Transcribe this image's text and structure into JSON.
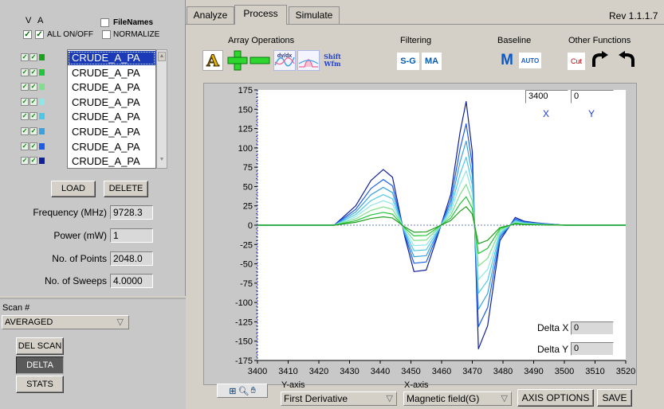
{
  "left": {
    "header_v": "V",
    "header_a": "A",
    "filenames_label": "FileNames",
    "all_onoff_label": "ALL ON/OFF",
    "normalize_label": "NORMALIZE",
    "files": [
      "CRUDE_A_PA",
      "CRUDE_A_PA",
      "CRUDE_A_PA",
      "CRUDE_A_PA",
      "CRUDE_A_PA",
      "CRUDE_A_PA",
      "CRUDE_A_PA",
      "CRUDE_A_PA"
    ],
    "swatch_colors": [
      "#1ea01e",
      "#22c43a",
      "#7ee08a",
      "#8fe6e6",
      "#4fc8e8",
      "#3aa0e0",
      "#1c5ce8",
      "#10209a"
    ],
    "load_label": "LOAD",
    "delete_label": "DELETE",
    "frequency_label": "Frequency (MHz)",
    "frequency_value": "9728.3",
    "power_label": "Power (mW)",
    "power_value": "1",
    "points_label": "No. of Points",
    "points_value": "2048.0",
    "sweeps_label": "No. of Sweeps",
    "sweeps_value": "4.0000",
    "scan_label": "Scan #",
    "scan_value": "AVERAGED",
    "del_scan_label": "DEL SCAN",
    "delta_label": "DELTA",
    "stats_label": "STATS"
  },
  "tabs": [
    "Analyze",
    "Process",
    "Simulate"
  ],
  "active_tab": "Process",
  "version": "Rev 1.1.1.7",
  "groups": {
    "array_ops": "Array Operations",
    "filtering": "Filtering",
    "baseline": "Baseline",
    "other": "Other Functions"
  },
  "tools": {
    "shift_line1": "Shift",
    "shift_line2": "Wfm",
    "dydx": "dy/dx",
    "sg": "S-G",
    "ma": "MA",
    "m": "M",
    "auto": "AUTO",
    "cut": "Cut"
  },
  "cursor": {
    "x_value": "3400",
    "y_value": "0",
    "x_label": "X",
    "y_label": "Y",
    "delta_x_label": "Delta X",
    "delta_x_value": "0",
    "delta_y_label": "Delta Y",
    "delta_y_value": "0"
  },
  "bottom": {
    "y_axis_label": "Y-axis",
    "y_axis_value": "First Derivative",
    "x_axis_label": "X-axis",
    "x_axis_value": "Magnetic field(G)",
    "axis_options_label": "AXIS OPTIONS",
    "save_label": "SAVE"
  },
  "chart_data": {
    "type": "line",
    "xlim": [
      3400,
      3520
    ],
    "ylim": [
      -175,
      175
    ],
    "x_ticks": [
      3400,
      3410,
      3420,
      3430,
      3440,
      3450,
      3460,
      3470,
      3480,
      3490,
      3500,
      3510,
      3520
    ],
    "y_ticks": [
      175,
      150,
      125,
      100,
      75,
      50,
      25,
      0,
      -25,
      -50,
      -75,
      -100,
      -125,
      -150,
      -175
    ],
    "grid": false,
    "series": [
      {
        "color": "#10209a",
        "scale": 1.0,
        "x": [
          3400,
          3425,
          3432,
          3437,
          3441,
          3444,
          3448,
          3451,
          3455,
          3459,
          3463,
          3466,
          3468,
          3470,
          3472,
          3475,
          3479,
          3484,
          3487,
          3491,
          3494,
          3500,
          3520
        ],
        "y": [
          0,
          0,
          25,
          58,
          72,
          62,
          -15,
          -60,
          -58,
          -10,
          40,
          120,
          160,
          95,
          -160,
          -130,
          -20,
          10,
          5,
          3,
          2,
          0,
          0
        ]
      },
      {
        "color": "#1c5ce8",
        "scale": 0.82,
        "x": [
          3400,
          3425,
          3432,
          3437,
          3441,
          3444,
          3448,
          3451,
          3455,
          3459,
          3463,
          3466,
          3468,
          3470,
          3472,
          3475,
          3479,
          3484,
          3487,
          3491,
          3494,
          3500,
          3520
        ],
        "y": [
          0,
          0,
          25,
          58,
          72,
          62,
          -15,
          -60,
          -58,
          -10,
          40,
          120,
          160,
          95,
          -160,
          -130,
          -20,
          10,
          5,
          3,
          2,
          0,
          0
        ]
      },
      {
        "color": "#3aa0e0",
        "scale": 0.68,
        "x": [
          3400,
          3425,
          3432,
          3437,
          3441,
          3444,
          3448,
          3451,
          3455,
          3459,
          3463,
          3466,
          3468,
          3470,
          3472,
          3475,
          3479,
          3484,
          3487,
          3491,
          3494,
          3500,
          3520
        ],
        "y": [
          0,
          0,
          25,
          58,
          72,
          62,
          -15,
          -60,
          -58,
          -10,
          40,
          120,
          160,
          95,
          -160,
          -130,
          -20,
          10,
          5,
          3,
          2,
          0,
          0
        ]
      },
      {
        "color": "#4fc8e8",
        "scale": 0.55,
        "x": [
          3400,
          3425,
          3432,
          3437,
          3441,
          3444,
          3448,
          3451,
          3455,
          3459,
          3463,
          3466,
          3468,
          3470,
          3472,
          3475,
          3479,
          3484,
          3487,
          3491,
          3494,
          3500,
          3520
        ],
        "y": [
          0,
          0,
          25,
          58,
          72,
          62,
          -15,
          -60,
          -58,
          -10,
          40,
          120,
          160,
          95,
          -160,
          -130,
          -20,
          10,
          5,
          3,
          2,
          0,
          0
        ]
      },
      {
        "color": "#8fe6e6",
        "scale": 0.44,
        "x": [
          3400,
          3425,
          3432,
          3437,
          3441,
          3444,
          3448,
          3451,
          3455,
          3459,
          3463,
          3466,
          3468,
          3470,
          3472,
          3475,
          3479,
          3484,
          3487,
          3491,
          3494,
          3500,
          3520
        ],
        "y": [
          0,
          0,
          25,
          58,
          72,
          62,
          -15,
          -60,
          -58,
          -10,
          40,
          120,
          160,
          95,
          -160,
          -130,
          -20,
          10,
          5,
          3,
          2,
          0,
          0
        ]
      },
      {
        "color": "#7ee08a",
        "scale": 0.33,
        "x": [
          3400,
          3425,
          3432,
          3437,
          3441,
          3444,
          3448,
          3451,
          3455,
          3459,
          3463,
          3466,
          3468,
          3470,
          3472,
          3475,
          3479,
          3484,
          3487,
          3491,
          3494,
          3500,
          3520
        ],
        "y": [
          0,
          0,
          25,
          58,
          72,
          62,
          -15,
          -60,
          -58,
          -10,
          40,
          120,
          160,
          95,
          -160,
          -130,
          -20,
          10,
          5,
          3,
          2,
          0,
          0
        ]
      },
      {
        "color": "#22c43a",
        "scale": 0.23,
        "x": [
          3400,
          3425,
          3432,
          3437,
          3441,
          3444,
          3448,
          3451,
          3455,
          3459,
          3463,
          3466,
          3468,
          3470,
          3472,
          3475,
          3479,
          3484,
          3487,
          3491,
          3494,
          3500,
          3520
        ],
        "y": [
          0,
          0,
          25,
          58,
          72,
          62,
          -15,
          -60,
          -58,
          -10,
          40,
          120,
          160,
          95,
          -160,
          -130,
          -20,
          10,
          5,
          3,
          2,
          0,
          0
        ]
      },
      {
        "color": "#1ea01e",
        "scale": 0.15,
        "x": [
          3400,
          3425,
          3432,
          3437,
          3441,
          3444,
          3448,
          3451,
          3455,
          3459,
          3463,
          3466,
          3468,
          3470,
          3472,
          3475,
          3479,
          3484,
          3487,
          3491,
          3494,
          3500,
          3520
        ],
        "y": [
          0,
          0,
          25,
          58,
          72,
          62,
          -15,
          -60,
          -58,
          -10,
          40,
          120,
          160,
          95,
          -160,
          -130,
          -20,
          10,
          5,
          3,
          2,
          0,
          0
        ]
      }
    ]
  }
}
